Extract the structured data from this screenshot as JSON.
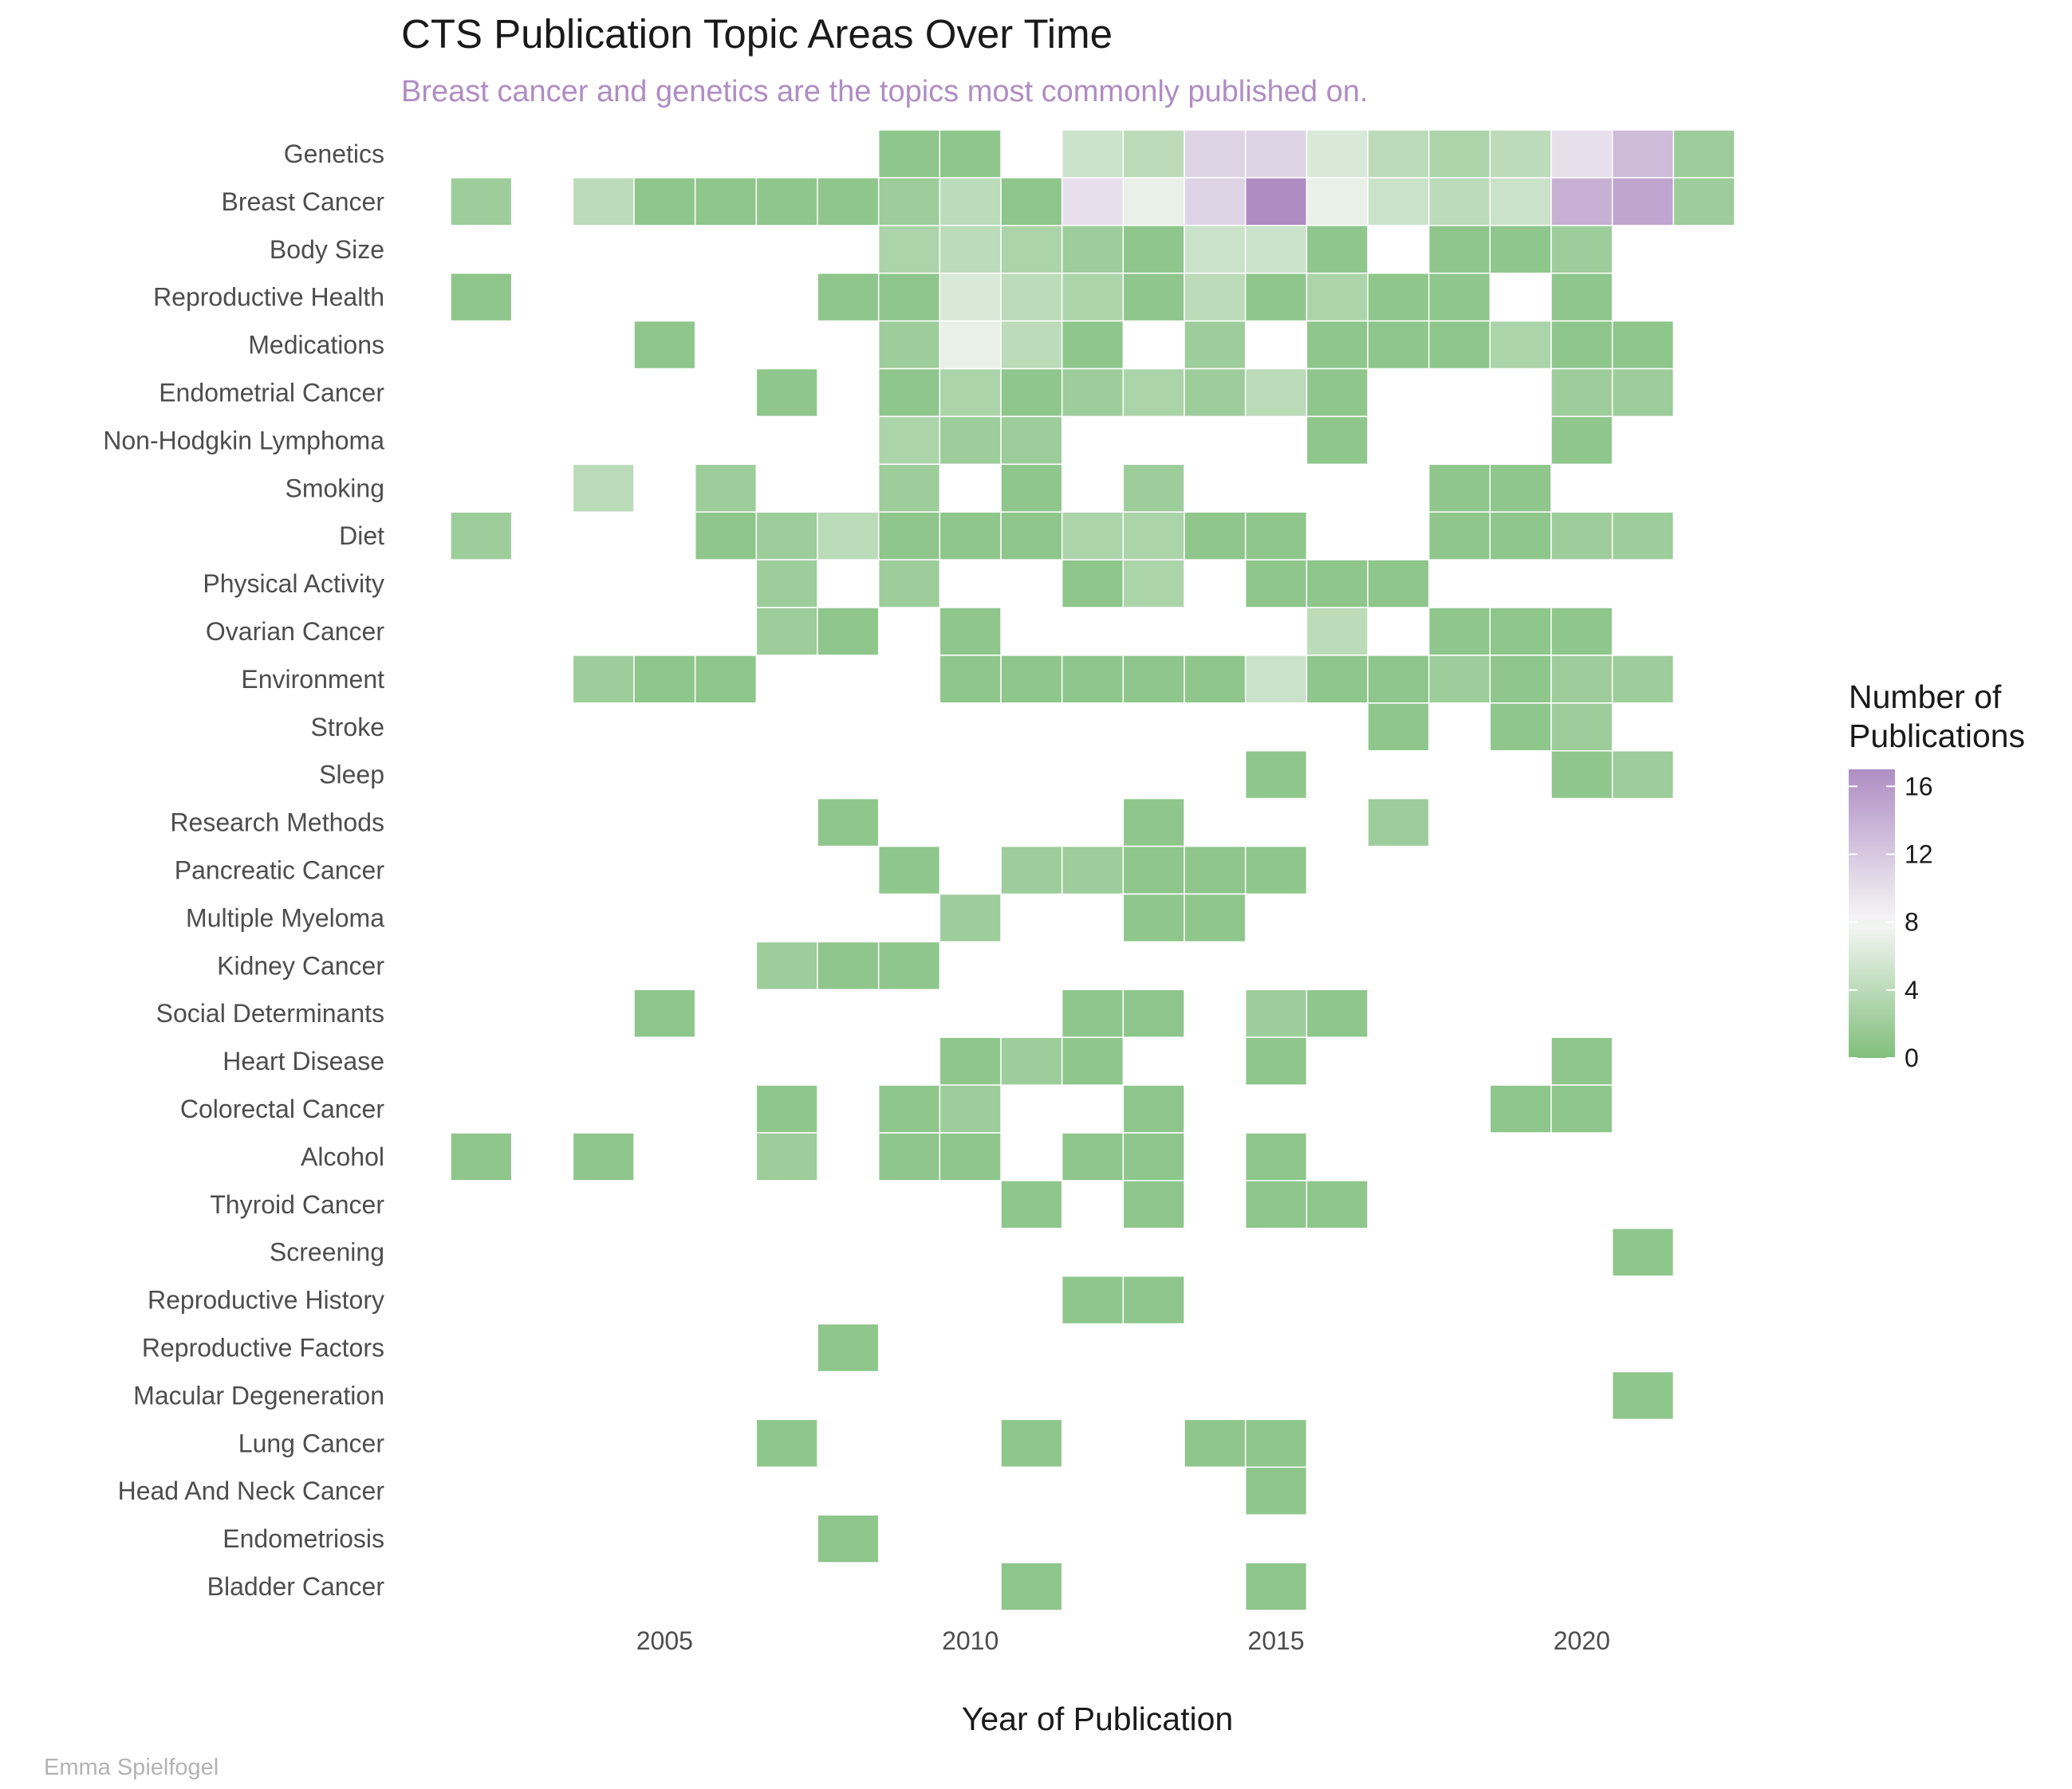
{
  "chart_data": {
    "type": "heatmap",
    "title": "CTS Publication Topic Areas Over Time",
    "subtitle": "Breast cancer and genetics are the topics most commonly published on.",
    "xlabel": "Year of Publication",
    "ylabel": "",
    "caption": "Emma Spielfogel",
    "x_range": [
      2002,
      2022
    ],
    "x_ticks": [
      2005,
      2010,
      2015,
      2020
    ],
    "x_tick_labels": [
      "2005",
      "2010",
      "2015",
      "2020"
    ],
    "legend": {
      "title_lines": [
        "Number of",
        "Publications"
      ],
      "ticks": [
        0,
        4,
        8,
        12,
        16
      ],
      "tick_labels": [
        "0",
        "4",
        "8",
        "12",
        "16"
      ],
      "range": [
        0,
        17
      ],
      "placement": "right"
    },
    "colors": {
      "low": "#7fbf7b",
      "mid": "#f7f7f7",
      "high": "#af8dc3",
      "mid_value": 8,
      "title": "#1a1a1a",
      "subtitle": "#af8dc3"
    },
    "topics": [
      "Genetics",
      "Breast Cancer",
      "Body Size",
      "Reproductive Health",
      "Medications",
      "Endometrial Cancer",
      "Non-Hodgkin Lymphoma",
      "Smoking",
      "Diet",
      "Physical Activity",
      "Ovarian Cancer",
      "Environment",
      "Stroke",
      "Sleep",
      "Research Methods",
      "Pancreatic Cancer",
      "Multiple Myeloma",
      "Kidney Cancer",
      "Social Determinants",
      "Heart Disease",
      "Colorectal Cancer",
      "Alcohol",
      "Thyroid Cancer",
      "Screening",
      "Reproductive History",
      "Reproductive Factors",
      "Macular Degeneration",
      "Lung Cancer",
      "Head And Neck Cancer",
      "Endometriosis",
      "Bladder Cancer"
    ],
    "cells": [
      {
        "topic": "Genetics",
        "year": 2009,
        "value": 1
      },
      {
        "topic": "Genetics",
        "year": 2010,
        "value": 1
      },
      {
        "topic": "Genetics",
        "year": 2012,
        "value": 5
      },
      {
        "topic": "Genetics",
        "year": 2013,
        "value": 4
      },
      {
        "topic": "Genetics",
        "year": 2014,
        "value": 11
      },
      {
        "topic": "Genetics",
        "year": 2015,
        "value": 11
      },
      {
        "topic": "Genetics",
        "year": 2016,
        "value": 6
      },
      {
        "topic": "Genetics",
        "year": 2017,
        "value": 4
      },
      {
        "topic": "Genetics",
        "year": 2018,
        "value": 3
      },
      {
        "topic": "Genetics",
        "year": 2019,
        "value": 4
      },
      {
        "topic": "Genetics",
        "year": 2020,
        "value": 10
      },
      {
        "topic": "Genetics",
        "year": 2021,
        "value": 13
      },
      {
        "topic": "Genetics",
        "year": 2022,
        "value": 2
      },
      {
        "topic": "Breast Cancer",
        "year": 2002,
        "value": 2
      },
      {
        "topic": "Breast Cancer",
        "year": 2004,
        "value": 4
      },
      {
        "topic": "Breast Cancer",
        "year": 2005,
        "value": 1
      },
      {
        "topic": "Breast Cancer",
        "year": 2006,
        "value": 1
      },
      {
        "topic": "Breast Cancer",
        "year": 2007,
        "value": 1
      },
      {
        "topic": "Breast Cancer",
        "year": 2008,
        "value": 1
      },
      {
        "topic": "Breast Cancer",
        "year": 2009,
        "value": 2
      },
      {
        "topic": "Breast Cancer",
        "year": 2010,
        "value": 4
      },
      {
        "topic": "Breast Cancer",
        "year": 2011,
        "value": 1
      },
      {
        "topic": "Breast Cancer",
        "year": 2012,
        "value": 10
      },
      {
        "topic": "Breast Cancer",
        "year": 2013,
        "value": 7
      },
      {
        "topic": "Breast Cancer",
        "year": 2014,
        "value": 11
      },
      {
        "topic": "Breast Cancer",
        "year": 2015,
        "value": 17
      },
      {
        "topic": "Breast Cancer",
        "year": 2016,
        "value": 7
      },
      {
        "topic": "Breast Cancer",
        "year": 2017,
        "value": 5
      },
      {
        "topic": "Breast Cancer",
        "year": 2018,
        "value": 4
      },
      {
        "topic": "Breast Cancer",
        "year": 2019,
        "value": 5
      },
      {
        "topic": "Breast Cancer",
        "year": 2020,
        "value": 14
      },
      {
        "topic": "Breast Cancer",
        "year": 2021,
        "value": 15
      },
      {
        "topic": "Breast Cancer",
        "year": 2022,
        "value": 2
      },
      {
        "topic": "Body Size",
        "year": 2009,
        "value": 3
      },
      {
        "topic": "Body Size",
        "year": 2010,
        "value": 4
      },
      {
        "topic": "Body Size",
        "year": 2011,
        "value": 3
      },
      {
        "topic": "Body Size",
        "year": 2012,
        "value": 2
      },
      {
        "topic": "Body Size",
        "year": 2013,
        "value": 1
      },
      {
        "topic": "Body Size",
        "year": 2014,
        "value": 5
      },
      {
        "topic": "Body Size",
        "year": 2015,
        "value": 5
      },
      {
        "topic": "Body Size",
        "year": 2016,
        "value": 1
      },
      {
        "topic": "Body Size",
        "year": 2018,
        "value": 1
      },
      {
        "topic": "Body Size",
        "year": 2019,
        "value": 1
      },
      {
        "topic": "Body Size",
        "year": 2020,
        "value": 2
      },
      {
        "topic": "Reproductive Health",
        "year": 2002,
        "value": 1
      },
      {
        "topic": "Reproductive Health",
        "year": 2008,
        "value": 1
      },
      {
        "topic": "Reproductive Health",
        "year": 2009,
        "value": 1
      },
      {
        "topic": "Reproductive Health",
        "year": 2010,
        "value": 6
      },
      {
        "topic": "Reproductive Health",
        "year": 2011,
        "value": 4
      },
      {
        "topic": "Reproductive Health",
        "year": 2012,
        "value": 3
      },
      {
        "topic": "Reproductive Health",
        "year": 2013,
        "value": 1
      },
      {
        "topic": "Reproductive Health",
        "year": 2014,
        "value": 4
      },
      {
        "topic": "Reproductive Health",
        "year": 2015,
        "value": 1
      },
      {
        "topic": "Reproductive Health",
        "year": 2016,
        "value": 3
      },
      {
        "topic": "Reproductive Health",
        "year": 2017,
        "value": 1
      },
      {
        "topic": "Reproductive Health",
        "year": 2018,
        "value": 1
      },
      {
        "topic": "Reproductive Health",
        "year": 2020,
        "value": 1
      },
      {
        "topic": "Medications",
        "year": 2005,
        "value": 1
      },
      {
        "topic": "Medications",
        "year": 2009,
        "value": 2
      },
      {
        "topic": "Medications",
        "year": 2010,
        "value": 7
      },
      {
        "topic": "Medications",
        "year": 2011,
        "value": 4
      },
      {
        "topic": "Medications",
        "year": 2012,
        "value": 1
      },
      {
        "topic": "Medications",
        "year": 2014,
        "value": 2
      },
      {
        "topic": "Medications",
        "year": 2016,
        "value": 1
      },
      {
        "topic": "Medications",
        "year": 2017,
        "value": 1
      },
      {
        "topic": "Medications",
        "year": 2018,
        "value": 1
      },
      {
        "topic": "Medications",
        "year": 2019,
        "value": 3
      },
      {
        "topic": "Medications",
        "year": 2020,
        "value": 1
      },
      {
        "topic": "Medications",
        "year": 2021,
        "value": 1
      },
      {
        "topic": "Endometrial Cancer",
        "year": 2007,
        "value": 1
      },
      {
        "topic": "Endometrial Cancer",
        "year": 2009,
        "value": 1
      },
      {
        "topic": "Endometrial Cancer",
        "year": 2010,
        "value": 3
      },
      {
        "topic": "Endometrial Cancer",
        "year": 2011,
        "value": 1
      },
      {
        "topic": "Endometrial Cancer",
        "year": 2012,
        "value": 2
      },
      {
        "topic": "Endometrial Cancer",
        "year": 2013,
        "value": 3
      },
      {
        "topic": "Endometrial Cancer",
        "year": 2014,
        "value": 2
      },
      {
        "topic": "Endometrial Cancer",
        "year": 2015,
        "value": 4
      },
      {
        "topic": "Endometrial Cancer",
        "year": 2016,
        "value": 1
      },
      {
        "topic": "Endometrial Cancer",
        "year": 2020,
        "value": 2
      },
      {
        "topic": "Endometrial Cancer",
        "year": 2021,
        "value": 2
      },
      {
        "topic": "Non-Hodgkin Lymphoma",
        "year": 2009,
        "value": 3
      },
      {
        "topic": "Non-Hodgkin Lymphoma",
        "year": 2010,
        "value": 2
      },
      {
        "topic": "Non-Hodgkin Lymphoma",
        "year": 2011,
        "value": 2
      },
      {
        "topic": "Non-Hodgkin Lymphoma",
        "year": 2016,
        "value": 1
      },
      {
        "topic": "Non-Hodgkin Lymphoma",
        "year": 2020,
        "value": 1
      },
      {
        "topic": "Smoking",
        "year": 2004,
        "value": 4
      },
      {
        "topic": "Smoking",
        "year": 2006,
        "value": 2
      },
      {
        "topic": "Smoking",
        "year": 2009,
        "value": 2
      },
      {
        "topic": "Smoking",
        "year": 2011,
        "value": 1
      },
      {
        "topic": "Smoking",
        "year": 2013,
        "value": 2
      },
      {
        "topic": "Smoking",
        "year": 2018,
        "value": 1
      },
      {
        "topic": "Smoking",
        "year": 2019,
        "value": 1
      },
      {
        "topic": "Diet",
        "year": 2002,
        "value": 2
      },
      {
        "topic": "Diet",
        "year": 2006,
        "value": 1
      },
      {
        "topic": "Diet",
        "year": 2007,
        "value": 2
      },
      {
        "topic": "Diet",
        "year": 2008,
        "value": 4
      },
      {
        "topic": "Diet",
        "year": 2009,
        "value": 1
      },
      {
        "topic": "Diet",
        "year": 2010,
        "value": 1
      },
      {
        "topic": "Diet",
        "year": 2011,
        "value": 1
      },
      {
        "topic": "Diet",
        "year": 2012,
        "value": 3
      },
      {
        "topic": "Diet",
        "year": 2013,
        "value": 3
      },
      {
        "topic": "Diet",
        "year": 2014,
        "value": 1
      },
      {
        "topic": "Diet",
        "year": 2015,
        "value": 1
      },
      {
        "topic": "Diet",
        "year": 2018,
        "value": 1
      },
      {
        "topic": "Diet",
        "year": 2019,
        "value": 1
      },
      {
        "topic": "Diet",
        "year": 2020,
        "value": 2
      },
      {
        "topic": "Diet",
        "year": 2021,
        "value": 2
      },
      {
        "topic": "Physical Activity",
        "year": 2007,
        "value": 2
      },
      {
        "topic": "Physical Activity",
        "year": 2009,
        "value": 2
      },
      {
        "topic": "Physical Activity",
        "year": 2012,
        "value": 1
      },
      {
        "topic": "Physical Activity",
        "year": 2013,
        "value": 3
      },
      {
        "topic": "Physical Activity",
        "year": 2015,
        "value": 1
      },
      {
        "topic": "Physical Activity",
        "year": 2016,
        "value": 1
      },
      {
        "topic": "Physical Activity",
        "year": 2017,
        "value": 1
      },
      {
        "topic": "Ovarian Cancer",
        "year": 2007,
        "value": 2
      },
      {
        "topic": "Ovarian Cancer",
        "year": 2008,
        "value": 1
      },
      {
        "topic": "Ovarian Cancer",
        "year": 2010,
        "value": 1
      },
      {
        "topic": "Ovarian Cancer",
        "year": 2016,
        "value": 4
      },
      {
        "topic": "Ovarian Cancer",
        "year": 2018,
        "value": 1
      },
      {
        "topic": "Ovarian Cancer",
        "year": 2019,
        "value": 1
      },
      {
        "topic": "Ovarian Cancer",
        "year": 2020,
        "value": 1
      },
      {
        "topic": "Environment",
        "year": 2004,
        "value": 2
      },
      {
        "topic": "Environment",
        "year": 2005,
        "value": 1
      },
      {
        "topic": "Environment",
        "year": 2006,
        "value": 1
      },
      {
        "topic": "Environment",
        "year": 2010,
        "value": 1
      },
      {
        "topic": "Environment",
        "year": 2011,
        "value": 1
      },
      {
        "topic": "Environment",
        "year": 2012,
        "value": 1
      },
      {
        "topic": "Environment",
        "year": 2013,
        "value": 1
      },
      {
        "topic": "Environment",
        "year": 2014,
        "value": 1
      },
      {
        "topic": "Environment",
        "year": 2015,
        "value": 5
      },
      {
        "topic": "Environment",
        "year": 2016,
        "value": 1
      },
      {
        "topic": "Environment",
        "year": 2017,
        "value": 1
      },
      {
        "topic": "Environment",
        "year": 2018,
        "value": 2
      },
      {
        "topic": "Environment",
        "year": 2019,
        "value": 1
      },
      {
        "topic": "Environment",
        "year": 2020,
        "value": 2
      },
      {
        "topic": "Environment",
        "year": 2021,
        "value": 2
      },
      {
        "topic": "Stroke",
        "year": 2017,
        "value": 1
      },
      {
        "topic": "Stroke",
        "year": 2019,
        "value": 1
      },
      {
        "topic": "Stroke",
        "year": 2020,
        "value": 2
      },
      {
        "topic": "Sleep",
        "year": 2015,
        "value": 1
      },
      {
        "topic": "Sleep",
        "year": 2020,
        "value": 1
      },
      {
        "topic": "Sleep",
        "year": 2021,
        "value": 2
      },
      {
        "topic": "Research Methods",
        "year": 2008,
        "value": 1
      },
      {
        "topic": "Research Methods",
        "year": 2013,
        "value": 1
      },
      {
        "topic": "Research Methods",
        "year": 2017,
        "value": 2
      },
      {
        "topic": "Pancreatic Cancer",
        "year": 2009,
        "value": 1
      },
      {
        "topic": "Pancreatic Cancer",
        "year": 2011,
        "value": 2
      },
      {
        "topic": "Pancreatic Cancer",
        "year": 2012,
        "value": 2
      },
      {
        "topic": "Pancreatic Cancer",
        "year": 2013,
        "value": 1
      },
      {
        "topic": "Pancreatic Cancer",
        "year": 2014,
        "value": 1
      },
      {
        "topic": "Pancreatic Cancer",
        "year": 2015,
        "value": 1
      },
      {
        "topic": "Multiple Myeloma",
        "year": 2010,
        "value": 2
      },
      {
        "topic": "Multiple Myeloma",
        "year": 2013,
        "value": 1
      },
      {
        "topic": "Multiple Myeloma",
        "year": 2014,
        "value": 1
      },
      {
        "topic": "Kidney Cancer",
        "year": 2007,
        "value": 2
      },
      {
        "topic": "Kidney Cancer",
        "year": 2008,
        "value": 1
      },
      {
        "topic": "Kidney Cancer",
        "year": 2009,
        "value": 1
      },
      {
        "topic": "Social Determinants",
        "year": 2005,
        "value": 1
      },
      {
        "topic": "Social Determinants",
        "year": 2012,
        "value": 1
      },
      {
        "topic": "Social Determinants",
        "year": 2013,
        "value": 1
      },
      {
        "topic": "Social Determinants",
        "year": 2015,
        "value": 2
      },
      {
        "topic": "Social Determinants",
        "year": 2016,
        "value": 1
      },
      {
        "topic": "Heart Disease",
        "year": 2010,
        "value": 1
      },
      {
        "topic": "Heart Disease",
        "year": 2011,
        "value": 2
      },
      {
        "topic": "Heart Disease",
        "year": 2012,
        "value": 1
      },
      {
        "topic": "Heart Disease",
        "year": 2015,
        "value": 1
      },
      {
        "topic": "Heart Disease",
        "year": 2020,
        "value": 1
      },
      {
        "topic": "Colorectal Cancer",
        "year": 2007,
        "value": 1
      },
      {
        "topic": "Colorectal Cancer",
        "year": 2009,
        "value": 1
      },
      {
        "topic": "Colorectal Cancer",
        "year": 2010,
        "value": 2
      },
      {
        "topic": "Colorectal Cancer",
        "year": 2013,
        "value": 1
      },
      {
        "topic": "Colorectal Cancer",
        "year": 2019,
        "value": 1
      },
      {
        "topic": "Colorectal Cancer",
        "year": 2020,
        "value": 1
      },
      {
        "topic": "Alcohol",
        "year": 2002,
        "value": 1
      },
      {
        "topic": "Alcohol",
        "year": 2004,
        "value": 1
      },
      {
        "topic": "Alcohol",
        "year": 2007,
        "value": 2
      },
      {
        "topic": "Alcohol",
        "year": 2009,
        "value": 1
      },
      {
        "topic": "Alcohol",
        "year": 2010,
        "value": 1
      },
      {
        "topic": "Alcohol",
        "year": 2012,
        "value": 1
      },
      {
        "topic": "Alcohol",
        "year": 2013,
        "value": 1
      },
      {
        "topic": "Alcohol",
        "year": 2015,
        "value": 1
      },
      {
        "topic": "Thyroid Cancer",
        "year": 2011,
        "value": 1
      },
      {
        "topic": "Thyroid Cancer",
        "year": 2013,
        "value": 1
      },
      {
        "topic": "Thyroid Cancer",
        "year": 2015,
        "value": 1
      },
      {
        "topic": "Thyroid Cancer",
        "year": 2016,
        "value": 1
      },
      {
        "topic": "Screening",
        "year": 2021,
        "value": 1
      },
      {
        "topic": "Reproductive History",
        "year": 2012,
        "value": 1
      },
      {
        "topic": "Reproductive History",
        "year": 2013,
        "value": 1
      },
      {
        "topic": "Reproductive Factors",
        "year": 2008,
        "value": 1
      },
      {
        "topic": "Macular Degeneration",
        "year": 2021,
        "value": 1
      },
      {
        "topic": "Lung Cancer",
        "year": 2007,
        "value": 1
      },
      {
        "topic": "Lung Cancer",
        "year": 2011,
        "value": 1
      },
      {
        "topic": "Lung Cancer",
        "year": 2014,
        "value": 1
      },
      {
        "topic": "Lung Cancer",
        "year": 2015,
        "value": 1
      },
      {
        "topic": "Head And Neck Cancer",
        "year": 2015,
        "value": 1
      },
      {
        "topic": "Endometriosis",
        "year": 2008,
        "value": 1
      },
      {
        "topic": "Bladder Cancer",
        "year": 2011,
        "value": 1
      },
      {
        "topic": "Bladder Cancer",
        "year": 2015,
        "value": 1
      }
    ]
  }
}
